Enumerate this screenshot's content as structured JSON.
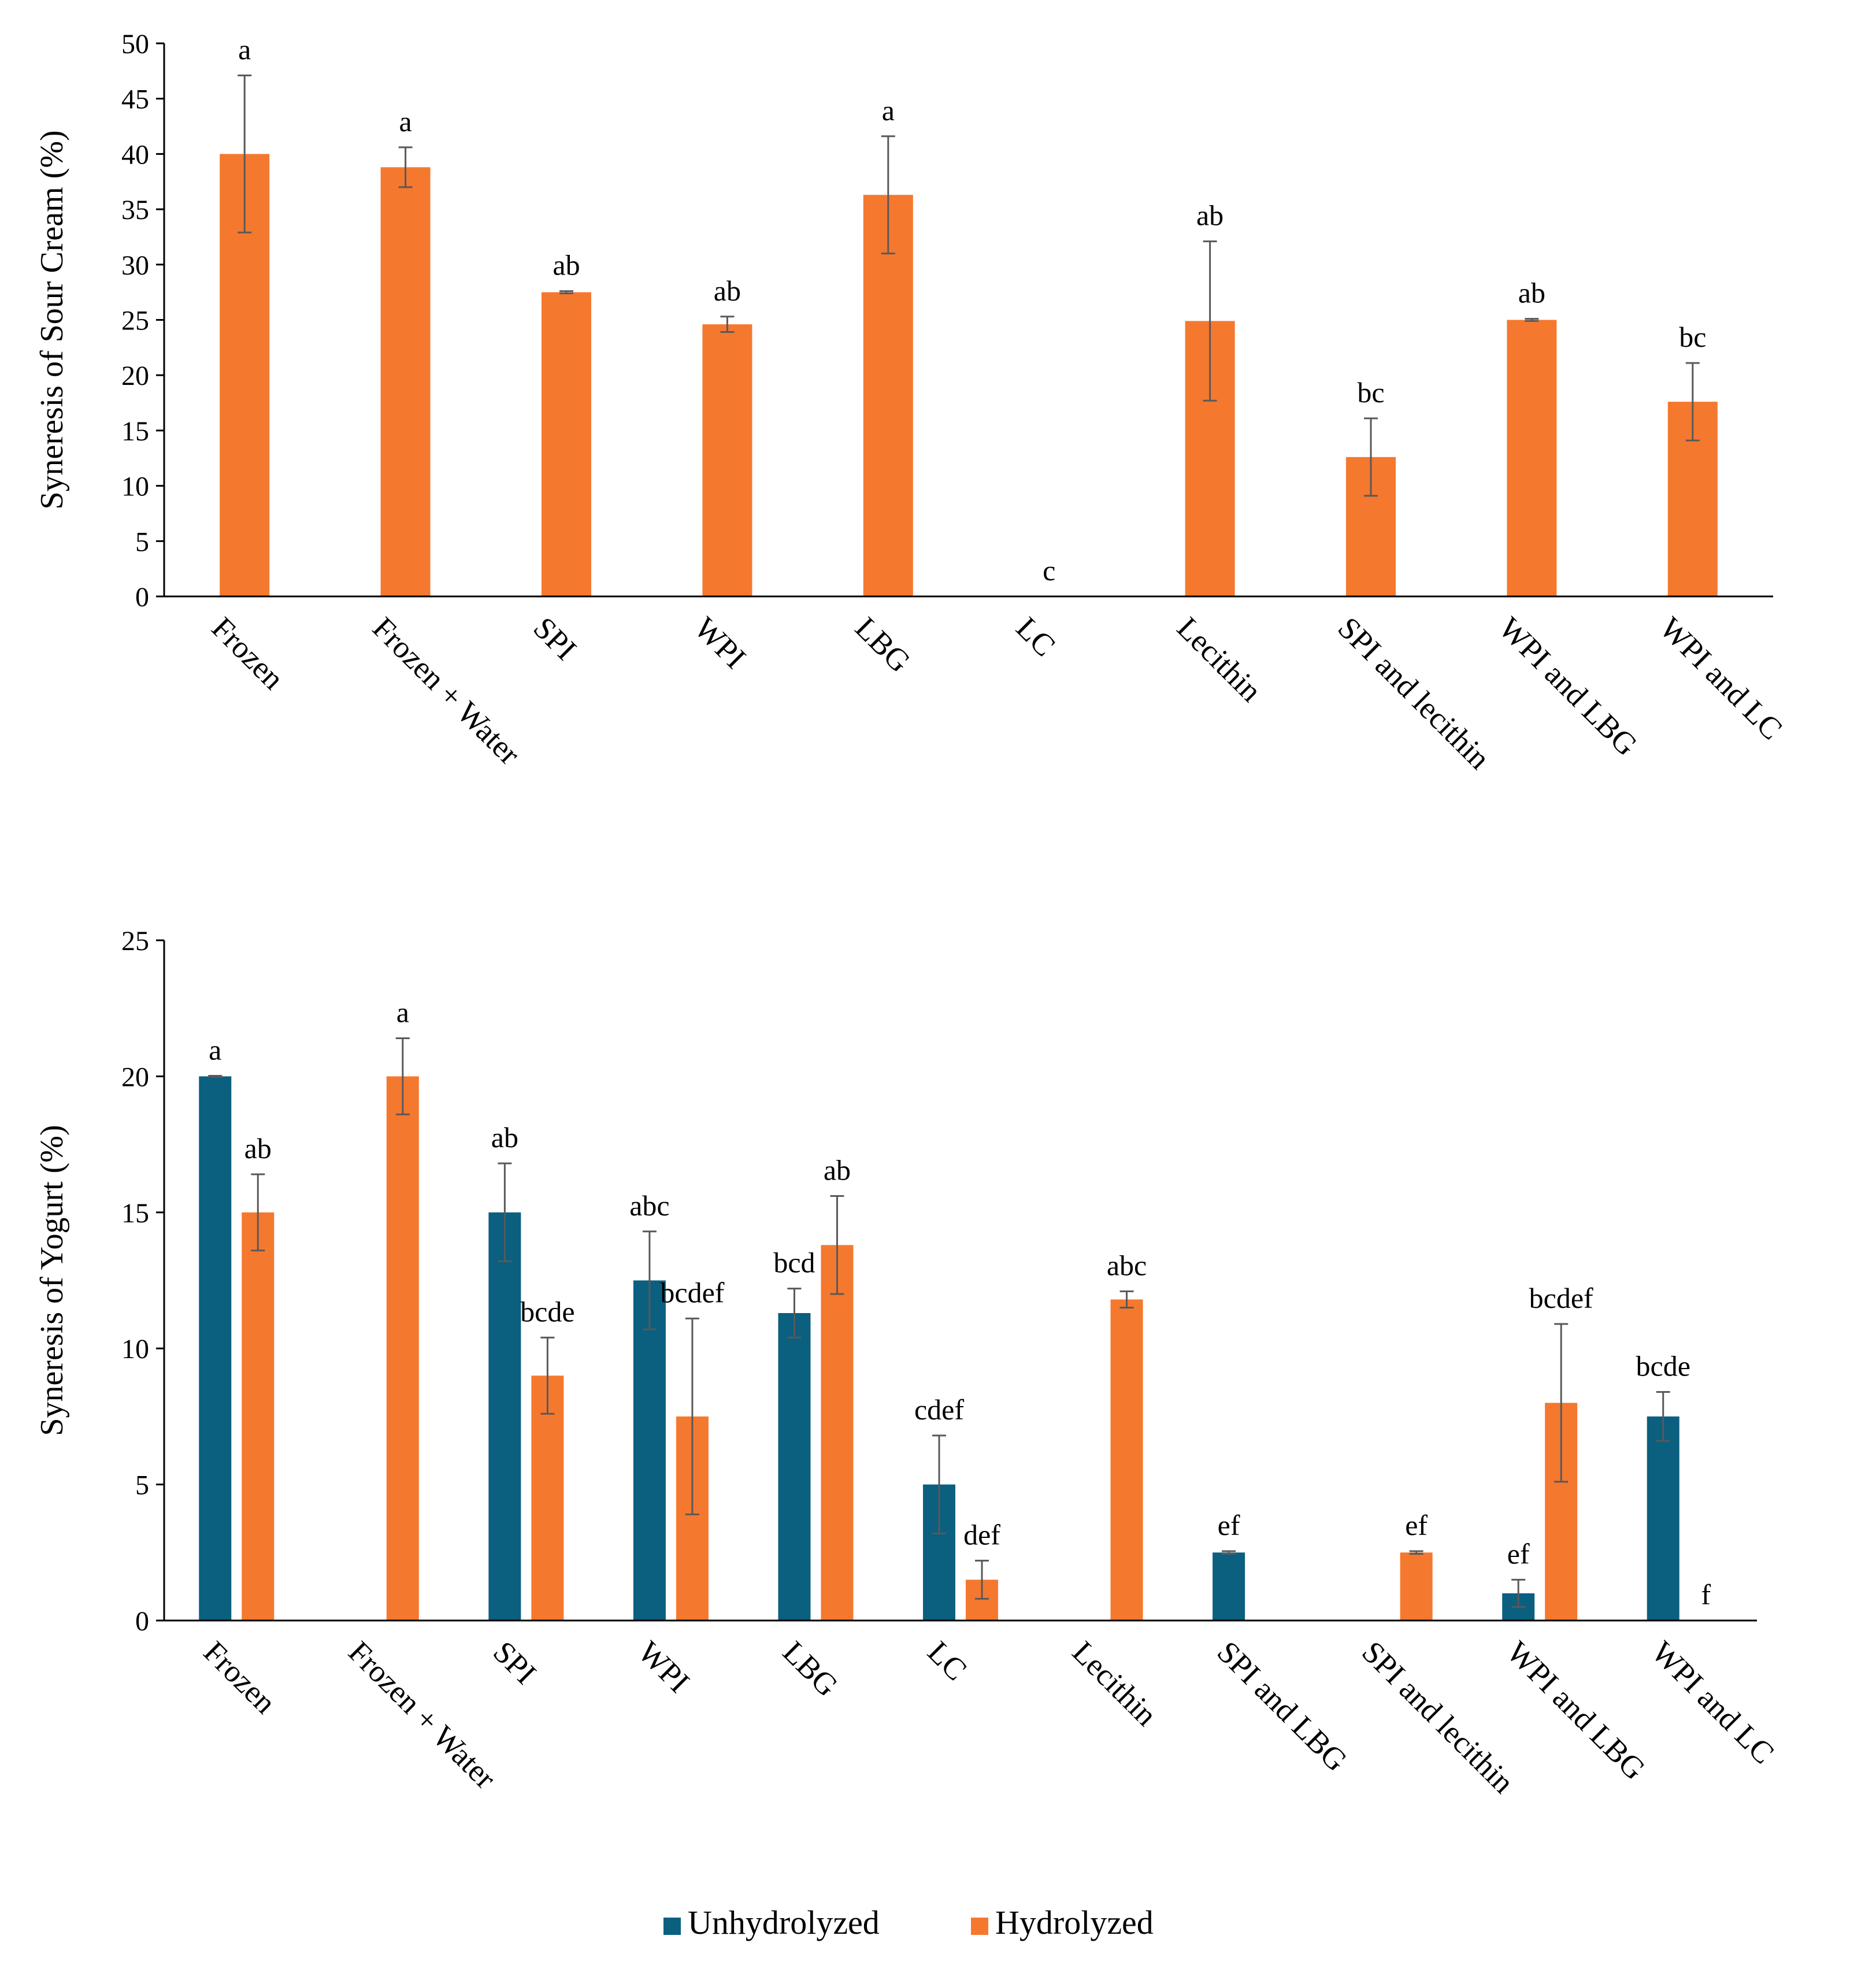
{
  "colors": {
    "unhydrolyzed": "#0b5f7f",
    "hydrolyzed": "#f5782f",
    "axis": "#000000",
    "error_bar": "#595959"
  },
  "legend": {
    "placement": "bottom-center",
    "items": [
      {
        "label": "Unhydrolyzed",
        "color": "#0b5f7f"
      },
      {
        "label": "Hydrolyzed",
        "color": "#f5782f"
      }
    ]
  },
  "chart_data": [
    {
      "type": "bar",
      "id": "sour-cream",
      "ylabel": "Syneresis of Sour Cream (%)",
      "ylim": [
        0,
        50
      ],
      "yticks": [
        0,
        5,
        10,
        15,
        20,
        25,
        30,
        35,
        40,
        45,
        50
      ],
      "categories": [
        "Frozen",
        "Frozen + Water",
        "SPI",
        "WPI",
        "LBG",
        "LC",
        "Lecithin",
        "SPI and lecithin",
        "WPI and LBG",
        "WPI and LC"
      ],
      "series": [
        {
          "name": "Hydrolyzed",
          "key": "hydrolyzed",
          "values": [
            40.0,
            38.8,
            27.5,
            24.6,
            36.3,
            0,
            24.9,
            12.6,
            25.0,
            17.6
          ],
          "errors": [
            7.1,
            1.8,
            0.1,
            0.7,
            5.3,
            0,
            7.2,
            3.5,
            0.1,
            3.5
          ],
          "labels": [
            "a",
            "a",
            "ab",
            "ab",
            "a",
            "c",
            "ab",
            "bc",
            "ab",
            "bc"
          ]
        }
      ]
    },
    {
      "type": "bar",
      "id": "yogurt",
      "ylabel": "Syneresis of Yogurt (%)",
      "ylim": [
        0,
        25
      ],
      "yticks": [
        0,
        5,
        10,
        15,
        20,
        25
      ],
      "categories": [
        "Frozen",
        "Frozen + Water",
        "SPI",
        "WPI",
        "LBG",
        "LC",
        "Lecithin",
        "SPI and LBG",
        "SPI and lecithin",
        "WPI and LBG",
        "WPI and LC"
      ],
      "series": [
        {
          "name": "Unhydrolyzed",
          "key": "unhydrolyzed",
          "values": [
            20.0,
            null,
            15.0,
            12.5,
            11.3,
            5.0,
            null,
            2.5,
            null,
            1.0,
            7.5
          ],
          "errors": [
            0.02,
            null,
            1.8,
            1.8,
            0.9,
            1.8,
            null,
            0.05,
            null,
            0.5,
            0.9
          ],
          "labels": [
            "a",
            "",
            "ab",
            "abc",
            "bcd",
            "cdef",
            "",
            "ef",
            "",
            "ef",
            "bcde"
          ]
        },
        {
          "name": "Hydrolyzed",
          "key": "hydrolyzed",
          "values": [
            15.0,
            20.0,
            9.0,
            7.5,
            13.8,
            1.5,
            11.8,
            null,
            2.5,
            8.0,
            0
          ],
          "errors": [
            1.4,
            1.4,
            1.4,
            3.6,
            1.8,
            0.7,
            0.3,
            null,
            0.05,
            2.9,
            0
          ],
          "labels": [
            "ab",
            "a",
            "bcde",
            "bcdef",
            "ab",
            "def",
            "abc",
            "",
            "ef",
            "bcdef",
            "f"
          ]
        }
      ]
    }
  ]
}
